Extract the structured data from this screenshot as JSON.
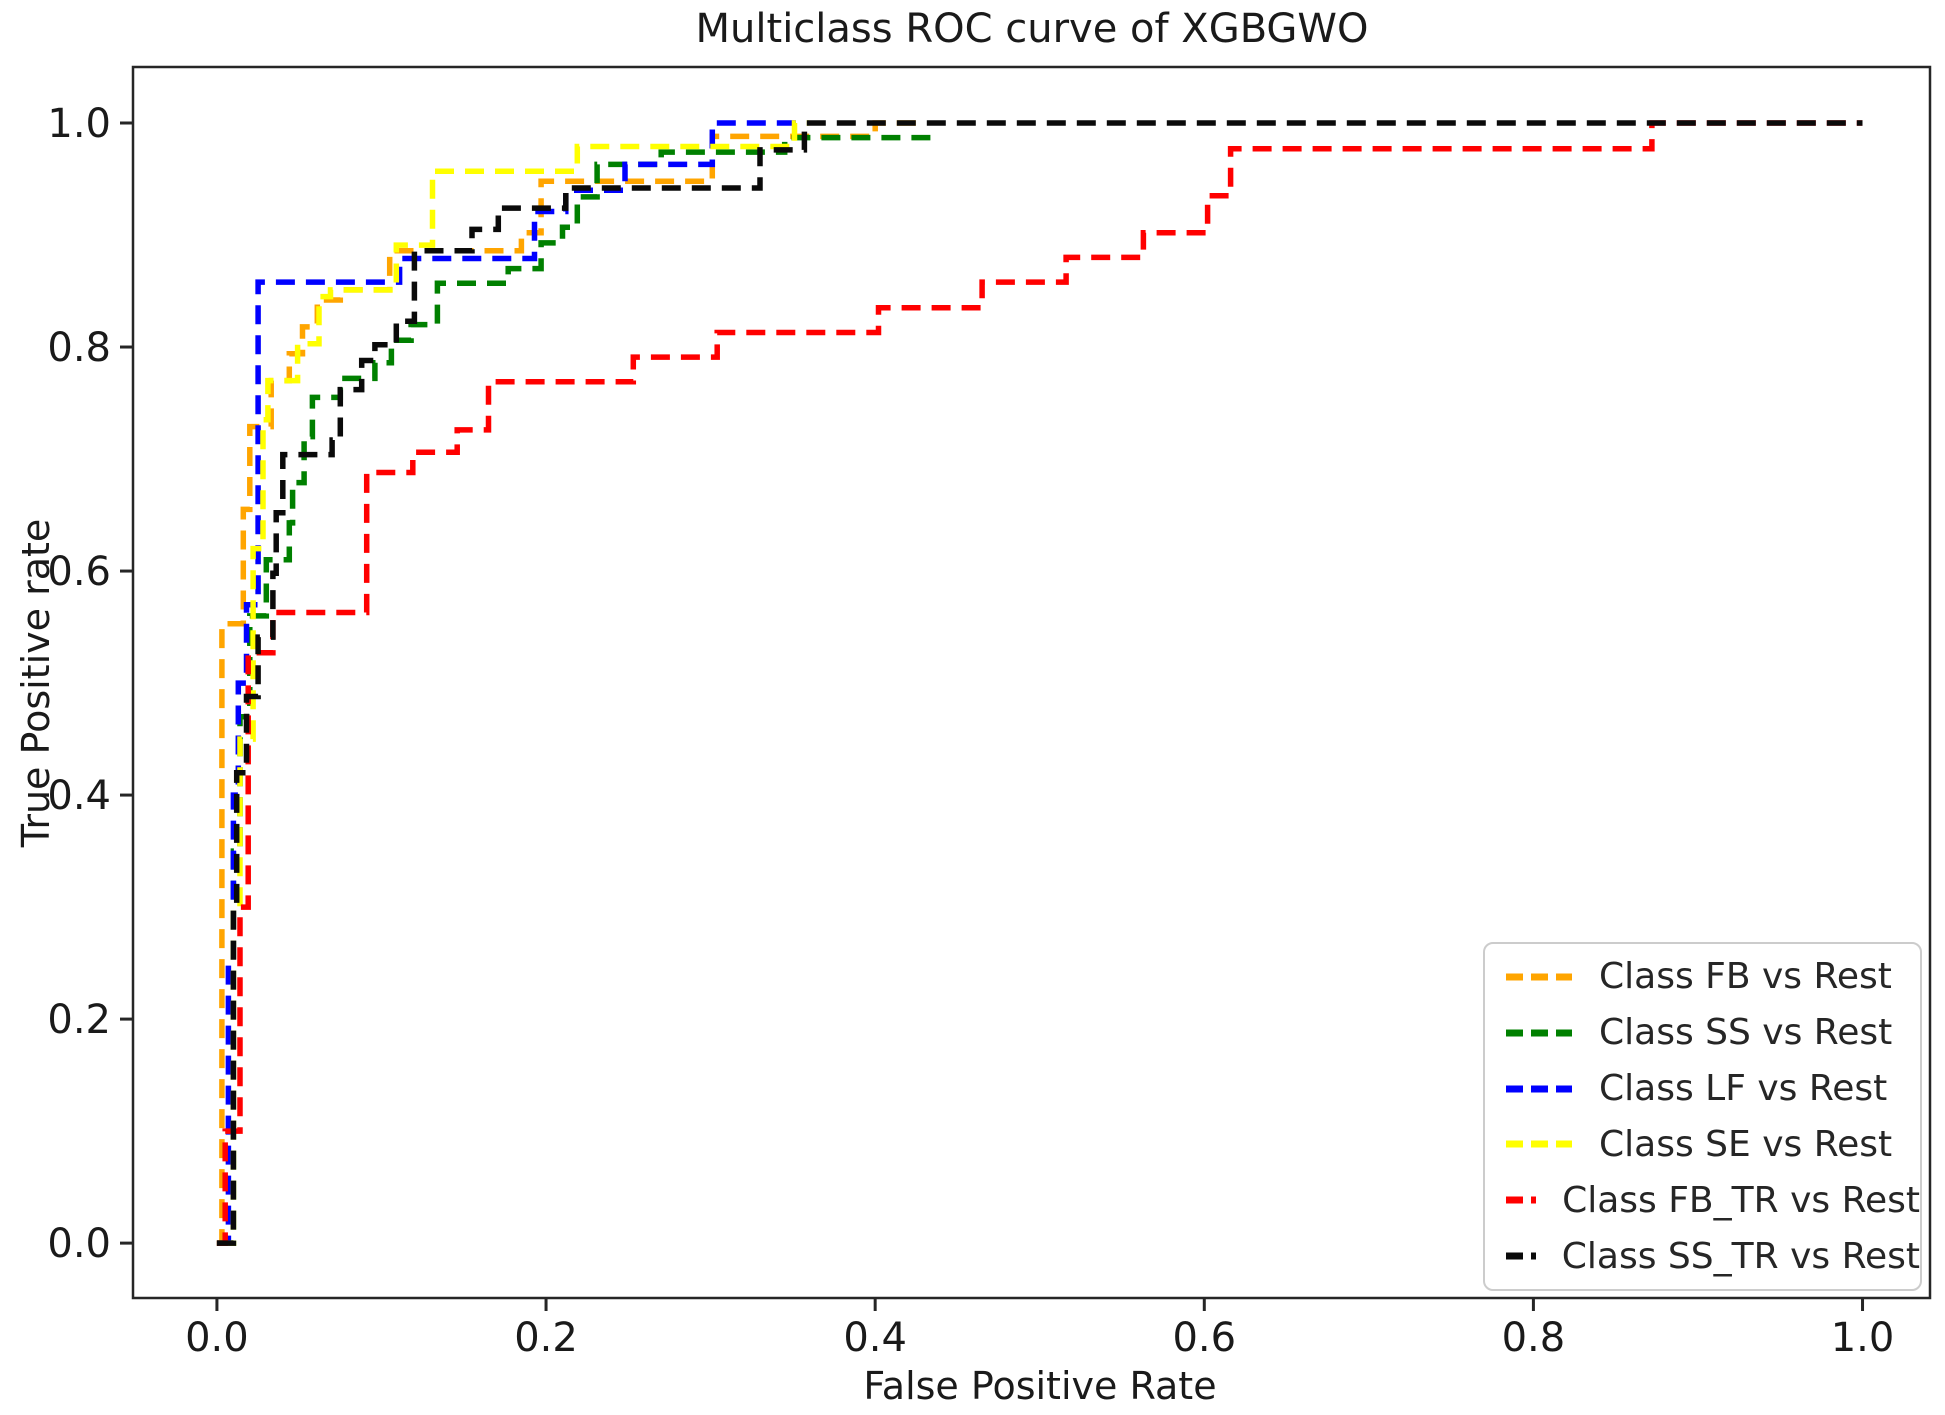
{
  "chart_data": {
    "type": "line",
    "subtype": "roc-step-curves",
    "title": "Multiclass ROC curve of XGBGWO",
    "xlabel": "False Positive Rate",
    "ylabel": "True Positive rate",
    "grid": false,
    "legend_position": "lower right",
    "line_style": "dashed",
    "xlim": [
      -0.051,
      1.041
    ],
    "ylim": [
      -0.049,
      1.05
    ],
    "x_ticks": [
      0.0,
      0.2,
      0.4,
      0.6,
      0.8,
      1.0
    ],
    "y_ticks": [
      0.0,
      0.2,
      0.4,
      0.6,
      0.8,
      1.0
    ],
    "x_tick_labels": [
      "0.0",
      "0.2",
      "0.4",
      "0.6",
      "0.8",
      "1.0"
    ],
    "y_tick_labels": [
      "0.0",
      "0.2",
      "0.4",
      "0.6",
      "0.8",
      "1.0"
    ],
    "axis_color": "#262626",
    "series": [
      {
        "name": "Class FB vs Rest",
        "color": "#FFA500",
        "points": [
          [
            0,
            0
          ],
          [
            0.003,
            0
          ],
          [
            0.003,
            0.553
          ],
          [
            0.016,
            0.553
          ],
          [
            0.016,
            0.655
          ],
          [
            0.02,
            0.655
          ],
          [
            0.02,
            0.729
          ],
          [
            0.033,
            0.729
          ],
          [
            0.033,
            0.77
          ],
          [
            0.044,
            0.77
          ],
          [
            0.044,
            0.794
          ],
          [
            0.052,
            0.794
          ],
          [
            0.052,
            0.818
          ],
          [
            0.061,
            0.818
          ],
          [
            0.061,
            0.842
          ],
          [
            0.075,
            0.842
          ],
          [
            0.075,
            0.851
          ],
          [
            0.105,
            0.851
          ],
          [
            0.105,
            0.886
          ],
          [
            0.185,
            0.886
          ],
          [
            0.185,
            0.902
          ],
          [
            0.197,
            0.902
          ],
          [
            0.197,
            0.948
          ],
          [
            0.301,
            0.948
          ],
          [
            0.301,
            0.988
          ],
          [
            0.4,
            0.988
          ],
          [
            0.4,
            1.0
          ],
          [
            0.425,
            1.0
          ]
        ]
      },
      {
        "name": "Class SS vs Rest",
        "color": "#008000",
        "points": [
          [
            0,
            0
          ],
          [
            0.01,
            0
          ],
          [
            0.01,
            0.35
          ],
          [
            0.014,
            0.35
          ],
          [
            0.014,
            0.47
          ],
          [
            0.02,
            0.47
          ],
          [
            0.02,
            0.56
          ],
          [
            0.03,
            0.56
          ],
          [
            0.03,
            0.61
          ],
          [
            0.044,
            0.61
          ],
          [
            0.044,
            0.643
          ],
          [
            0.046,
            0.643
          ],
          [
            0.046,
            0.679
          ],
          [
            0.053,
            0.679
          ],
          [
            0.053,
            0.72
          ],
          [
            0.058,
            0.72
          ],
          [
            0.058,
            0.755
          ],
          [
            0.075,
            0.755
          ],
          [
            0.075,
            0.772
          ],
          [
            0.096,
            0.772
          ],
          [
            0.096,
            0.786
          ],
          [
            0.106,
            0.786
          ],
          [
            0.106,
            0.806
          ],
          [
            0.118,
            0.806
          ],
          [
            0.118,
            0.82
          ],
          [
            0.134,
            0.82
          ],
          [
            0.134,
            0.857
          ],
          [
            0.177,
            0.857
          ],
          [
            0.177,
            0.87
          ],
          [
            0.197,
            0.87
          ],
          [
            0.197,
            0.893
          ],
          [
            0.21,
            0.893
          ],
          [
            0.21,
            0.907
          ],
          [
            0.219,
            0.907
          ],
          [
            0.219,
            0.934
          ],
          [
            0.231,
            0.934
          ],
          [
            0.231,
            0.963
          ],
          [
            0.27,
            0.963
          ],
          [
            0.27,
            0.974
          ],
          [
            0.345,
            0.974
          ],
          [
            0.345,
            0.987
          ],
          [
            0.439,
            0.987
          ]
        ]
      },
      {
        "name": "Class LF vs Rest",
        "color": "#0000FF",
        "points": [
          [
            0,
            0
          ],
          [
            0.007,
            0
          ],
          [
            0.007,
            0.25
          ],
          [
            0.01,
            0.25
          ],
          [
            0.01,
            0.4
          ],
          [
            0.013,
            0.4
          ],
          [
            0.013,
            0.5
          ],
          [
            0.018,
            0.5
          ],
          [
            0.018,
            0.57
          ],
          [
            0.025,
            0.57
          ],
          [
            0.025,
            0.858
          ],
          [
            0.111,
            0.858
          ],
          [
            0.111,
            0.879
          ],
          [
            0.193,
            0.879
          ],
          [
            0.193,
            0.921
          ],
          [
            0.212,
            0.921
          ],
          [
            0.212,
            0.94
          ],
          [
            0.248,
            0.94
          ],
          [
            0.248,
            0.963
          ],
          [
            0.301,
            0.963
          ],
          [
            0.301,
            1.0
          ],
          [
            0.355,
            1.0
          ]
        ]
      },
      {
        "name": "Class SE vs Rest",
        "color": "#FFFF00",
        "points": [
          [
            0,
            0
          ],
          [
            0.01,
            0
          ],
          [
            0.01,
            0.3
          ],
          [
            0.014,
            0.3
          ],
          [
            0.014,
            0.45
          ],
          [
            0.022,
            0.45
          ],
          [
            0.022,
            0.62
          ],
          [
            0.028,
            0.62
          ],
          [
            0.028,
            0.735
          ],
          [
            0.031,
            0.735
          ],
          [
            0.031,
            0.77
          ],
          [
            0.049,
            0.77
          ],
          [
            0.049,
            0.803
          ],
          [
            0.062,
            0.803
          ],
          [
            0.062,
            0.845
          ],
          [
            0.069,
            0.845
          ],
          [
            0.069,
            0.851
          ],
          [
            0.109,
            0.851
          ],
          [
            0.109,
            0.891
          ],
          [
            0.131,
            0.891
          ],
          [
            0.131,
            0.957
          ],
          [
            0.219,
            0.957
          ],
          [
            0.219,
            0.979
          ],
          [
            0.351,
            0.979
          ],
          [
            0.351,
            1.0
          ],
          [
            0.36,
            1.0
          ]
        ]
      },
      {
        "name": "Class FB_TR vs Rest",
        "color": "#FF0000",
        "points": [
          [
            0,
            0
          ],
          [
            0.005,
            0
          ],
          [
            0.005,
            0.1
          ],
          [
            0.014,
            0.1
          ],
          [
            0.014,
            0.3
          ],
          [
            0.019,
            0.3
          ],
          [
            0.019,
            0.527
          ],
          [
            0.034,
            0.527
          ],
          [
            0.034,
            0.563
          ],
          [
            0.091,
            0.563
          ],
          [
            0.091,
            0.688
          ],
          [
            0.119,
            0.688
          ],
          [
            0.119,
            0.706
          ],
          [
            0.146,
            0.706
          ],
          [
            0.146,
            0.726
          ],
          [
            0.165,
            0.726
          ],
          [
            0.165,
            0.769
          ],
          [
            0.253,
            0.769
          ],
          [
            0.253,
            0.791
          ],
          [
            0.304,
            0.791
          ],
          [
            0.304,
            0.813
          ],
          [
            0.402,
            0.813
          ],
          [
            0.402,
            0.835
          ],
          [
            0.465,
            0.835
          ],
          [
            0.465,
            0.858
          ],
          [
            0.516,
            0.858
          ],
          [
            0.516,
            0.88
          ],
          [
            0.563,
            0.88
          ],
          [
            0.563,
            0.902
          ],
          [
            0.602,
            0.902
          ],
          [
            0.602,
            0.935
          ],
          [
            0.616,
            0.935
          ],
          [
            0.616,
            0.977
          ],
          [
            0.872,
            0.977
          ],
          [
            0.872,
            1.0
          ],
          [
            1.0,
            1.0
          ]
        ]
      },
      {
        "name": "Class SS_TR vs Rest",
        "color": "#0a0a0a",
        "points": [
          [
            0,
            0
          ],
          [
            0.01,
            0
          ],
          [
            0.01,
            0.3
          ],
          [
            0.012,
            0.3
          ],
          [
            0.012,
            0.42
          ],
          [
            0.018,
            0.42
          ],
          [
            0.018,
            0.488
          ],
          [
            0.025,
            0.488
          ],
          [
            0.025,
            0.541
          ],
          [
            0.034,
            0.541
          ],
          [
            0.034,
            0.598
          ],
          [
            0.036,
            0.598
          ],
          [
            0.036,
            0.652
          ],
          [
            0.04,
            0.652
          ],
          [
            0.04,
            0.704
          ],
          [
            0.07,
            0.704
          ],
          [
            0.07,
            0.717
          ],
          [
            0.075,
            0.717
          ],
          [
            0.075,
            0.762
          ],
          [
            0.088,
            0.762
          ],
          [
            0.088,
            0.788
          ],
          [
            0.096,
            0.788
          ],
          [
            0.096,
            0.802
          ],
          [
            0.109,
            0.802
          ],
          [
            0.109,
            0.823
          ],
          [
            0.12,
            0.823
          ],
          [
            0.12,
            0.886
          ],
          [
            0.155,
            0.886
          ],
          [
            0.155,
            0.905
          ],
          [
            0.171,
            0.905
          ],
          [
            0.171,
            0.924
          ],
          [
            0.212,
            0.924
          ],
          [
            0.212,
            0.942
          ],
          [
            0.33,
            0.942
          ],
          [
            0.33,
            0.976
          ],
          [
            0.357,
            0.976
          ],
          [
            0.357,
            1.0
          ],
          [
            1.0,
            1.0
          ]
        ]
      }
    ]
  }
}
